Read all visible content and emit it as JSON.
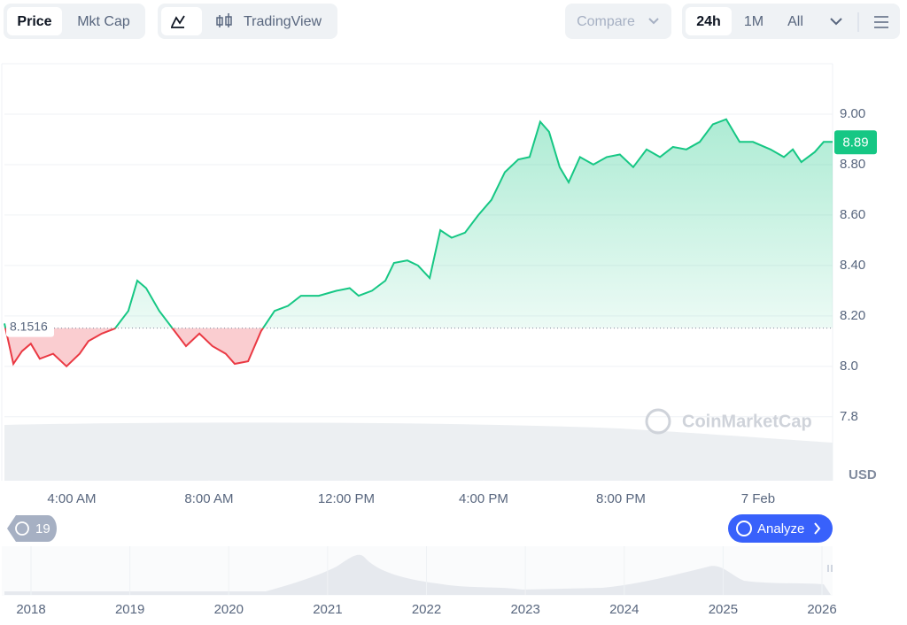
{
  "toolbar": {
    "view_tabs": [
      "Price",
      "Mkt Cap"
    ],
    "chart_tabs": [
      "TradingView"
    ],
    "compare": "Compare",
    "ranges": [
      "24h",
      "1M",
      "All"
    ]
  },
  "chart_data": {
    "type": "line",
    "series": [
      {
        "name": null,
        "color": "#16c784",
        "below_color": "#ea3943",
        "values": [
          8.17,
          8.01,
          8.06,
          8.09,
          8.03,
          8.05,
          8.0,
          8.05,
          8.1,
          8.13,
          8.15,
          8.22,
          8.34,
          8.31,
          8.22,
          8.15,
          8.08,
          8.13,
          8.08,
          8.05,
          8.01,
          8.02,
          8.14,
          8.22,
          8.24,
          8.28,
          8.28,
          8.3,
          8.31,
          8.28,
          8.3,
          8.34,
          8.41,
          8.42,
          8.4,
          8.35,
          8.54,
          8.51,
          8.53,
          8.6,
          8.66,
          8.77,
          8.82,
          8.83,
          8.97,
          8.93,
          8.79,
          8.73,
          8.83,
          8.8,
          8.83,
          8.84,
          8.79,
          8.86,
          8.83,
          8.87,
          8.86,
          8.89,
          8.96,
          8.98,
          8.89,
          8.89,
          8.86,
          8.83,
          8.86,
          8.81,
          8.85,
          8.89,
          8.89
        ]
      }
    ],
    "x": [
      2.04,
      2.3,
      2.55,
      2.81,
      3.07,
      3.46,
      3.85,
      4.23,
      4.49,
      4.88,
      5.26,
      5.65,
      5.91,
      6.17,
      6.55,
      6.94,
      7.33,
      7.72,
      8.1,
      8.49,
      8.75,
      9.14,
      9.52,
      9.91,
      10.3,
      10.68,
      11.2,
      11.72,
      12.1,
      12.36,
      12.75,
      13.14,
      13.39,
      13.78,
      14.09,
      14.43,
      14.74,
      15.07,
      15.46,
      15.85,
      16.23,
      16.62,
      17.01,
      17.34,
      17.65,
      17.91,
      18.22,
      18.48,
      18.81,
      19.2,
      19.59,
      19.97,
      20.36,
      20.75,
      21.14,
      21.52,
      21.91,
      22.3,
      22.68,
      23.07,
      23.46,
      23.85,
      24.36,
      24.75,
      25.01,
      25.26,
      25.65,
      25.91,
      26.17
    ],
    "xlim": [
      2.04,
      26.17
    ],
    "xticks": [
      {
        "value": 4,
        "label": "4:00 AM"
      },
      {
        "value": 8,
        "label": "8:00 AM"
      },
      {
        "value": 12,
        "label": "12:00 PM"
      },
      {
        "value": 16,
        "label": "4:00 PM"
      },
      {
        "value": 20,
        "label": "8:00 PM"
      },
      {
        "value": 24,
        "label": "7 Feb"
      }
    ],
    "ylim": [
      7.55,
      9.2
    ],
    "yticks": [
      7.8,
      {
        "value": 8,
        "label": "8.0"
      },
      {
        "value": 8.2,
        "label": "8.20"
      },
      {
        "value": 8.4,
        "label": "8.40"
      },
      {
        "value": 8.6,
        "label": "8.60"
      },
      {
        "value": 8.8,
        "label": "8.80"
      },
      {
        "value": 9,
        "label": "9.00"
      }
    ],
    "grid": true,
    "reference": 8.1516,
    "current_price": 8.89,
    "y_unit": "USD",
    "watermark": "CoinMarketCap"
  },
  "footer": {
    "history_count": 19,
    "analyze": "Analyze",
    "years": [
      2018,
      2019,
      2020,
      2021,
      2022,
      2023,
      2024,
      2025,
      2026
    ]
  }
}
